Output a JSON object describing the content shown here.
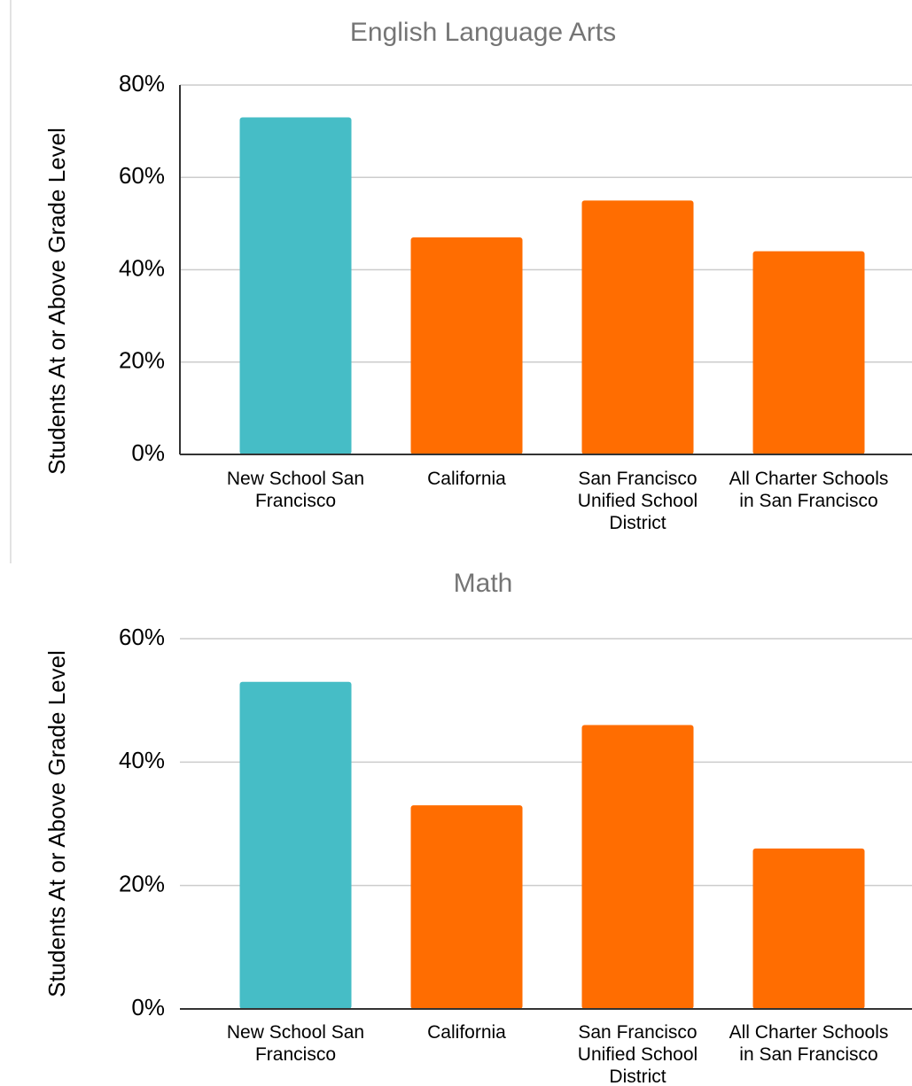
{
  "chart_data": [
    {
      "type": "bar",
      "title": "English Language Arts",
      "y_label": "Students At or Above Grade Level",
      "categories": [
        "New School San Francisco",
        "California",
        "San Francisco Unified School District",
        "All Charter Schools in San Francisco"
      ],
      "values": [
        73,
        47,
        55,
        44
      ],
      "colors": [
        "#46bdc6",
        "#ff6d01",
        "#ff6d01",
        "#ff6d01"
      ],
      "ylim": [
        0,
        80
      ],
      "yticks": [
        {
          "value": 0,
          "label": "0%"
        },
        {
          "value": 20,
          "label": "20%"
        },
        {
          "value": 40,
          "label": "40%"
        },
        {
          "value": 60,
          "label": "60%"
        },
        {
          "value": 80,
          "label": "80%"
        }
      ],
      "grid": true,
      "y_axis_line": true
    },
    {
      "type": "bar",
      "title": "Math",
      "y_label": "Students At or Above Grade Level",
      "categories": [
        "New School San Francisco",
        "California",
        "San Francisco Unified School District",
        "All Charter Schools in San Francisco"
      ],
      "values": [
        53,
        33,
        46,
        26
      ],
      "colors": [
        "#46bdc6",
        "#ff6d01",
        "#ff6d01",
        "#ff6d01"
      ],
      "ylim": [
        0,
        60
      ],
      "yticks": [
        {
          "value": 0,
          "label": "0%"
        },
        {
          "value": 20,
          "label": "20%"
        },
        {
          "value": 40,
          "label": "40%"
        },
        {
          "value": 60,
          "label": "60%"
        }
      ],
      "grid": true,
      "y_axis_line": false
    }
  ]
}
